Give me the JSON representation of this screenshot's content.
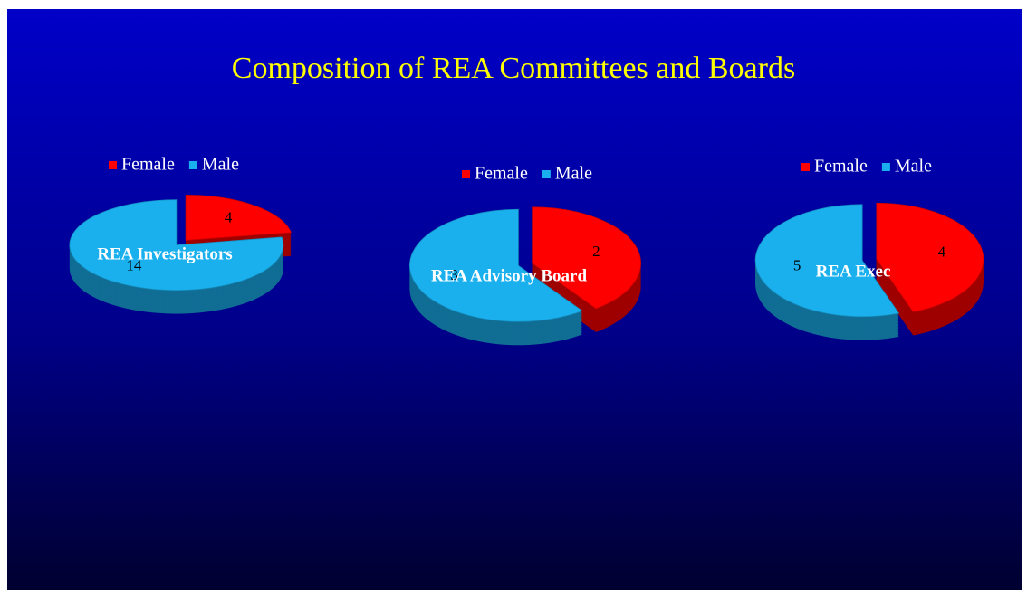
{
  "title": "Composition of REA Committees and Boards",
  "chart_data": [
    {
      "type": "pie",
      "title": "REA Investigators",
      "categories": [
        "Female",
        "Male"
      ],
      "values": [
        4,
        14
      ],
      "colors": [
        "#ff0000",
        "#1ab0ee"
      ]
    },
    {
      "type": "pie",
      "title": "REA Advisory Board",
      "categories": [
        "Female",
        "Male"
      ],
      "values": [
        2,
        3
      ],
      "colors": [
        "#ff0000",
        "#1ab0ee"
      ]
    },
    {
      "type": "pie",
      "title": "REA Exec",
      "categories": [
        "Female",
        "Male"
      ],
      "values": [
        4,
        5
      ],
      "colors": [
        "#ff0000",
        "#1ab0ee"
      ]
    }
  ]
}
